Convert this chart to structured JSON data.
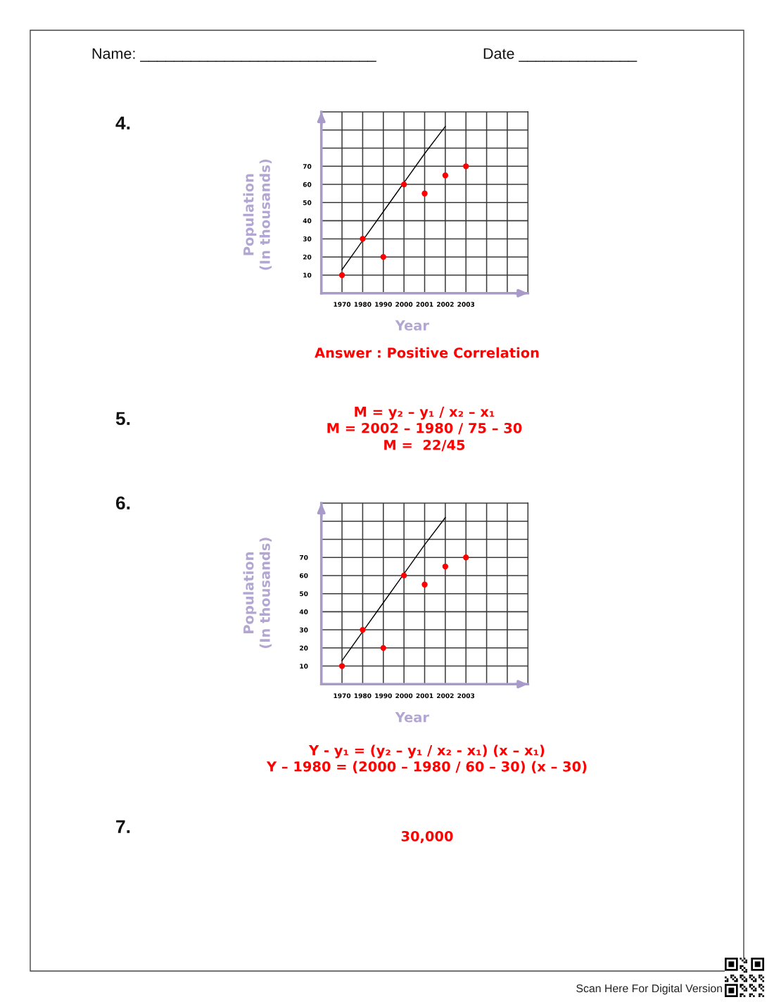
{
  "chart_data": [
    {
      "type": "other",
      "annotations": [
        "Name: ____________________________",
        "Date ______________"
      ]
    },
    {
      "type": "scatter",
      "annotations": [
        "4.",
        "Answer : Positive Correlation"
      ],
      "categories": [
        "1970",
        "1980",
        "1990",
        "2000",
        "2001",
        "2002",
        "2003",
        null,
        null
      ],
      "series": [
        {
          "type": "line",
          "color": "#000000",
          "values": [
            13,
            29,
            45,
            61,
            77,
            92,
            null,
            null,
            null
          ]
        },
        {
          "type": "scatter",
          "color": "#ff0000",
          "marker": "circle",
          "values": [
            10,
            30,
            20,
            60,
            55,
            65,
            70,
            null,
            null
          ]
        }
      ],
      "xlabel": "Year",
      "ylabel": "Population\n(In thousands)",
      "ylim": [
        0,
        100
      ],
      "yticks": [
        10,
        20,
        30,
        40,
        50,
        60,
        70
      ],
      "grid": true
    },
    {
      "type": "other",
      "annotations": [
        "5.",
        "M = y₂ – y₁ / x₂ – x₁",
        "M = 2002 – 1980 / 75 – 30",
        "M =  22/45"
      ]
    },
    {
      "type": "scatter",
      "annotations": [
        "6.",
        "Y - y₁ = (y₂ – y₁ / x₂ - x₁) (x – x₁)",
        "Y – 1980 = (2000 – 1980 / 60 – 30) (x – 30)"
      ],
      "categories": [
        "1970",
        "1980",
        "1990",
        "2000",
        "2001",
        "2002",
        "2003",
        null,
        null
      ],
      "series": [
        {
          "type": "line",
          "color": "#000000",
          "values": [
            13,
            29,
            45,
            61,
            77,
            92,
            null,
            null,
            null
          ]
        },
        {
          "type": "scatter",
          "color": "#ff0000",
          "marker": "circle",
          "values": [
            10,
            30,
            20,
            60,
            55,
            65,
            70,
            null,
            null
          ]
        }
      ],
      "xlabel": "Year",
      "ylabel": "Population\n(In thousands)",
      "ylim": [
        0,
        100
      ],
      "yticks": [
        10,
        20,
        30,
        40,
        50,
        60,
        70
      ],
      "grid": true
    },
    {
      "type": "other",
      "annotations": [
        "7.",
        "30,000",
        "Scan Here For Digital Version"
      ]
    }
  ]
}
